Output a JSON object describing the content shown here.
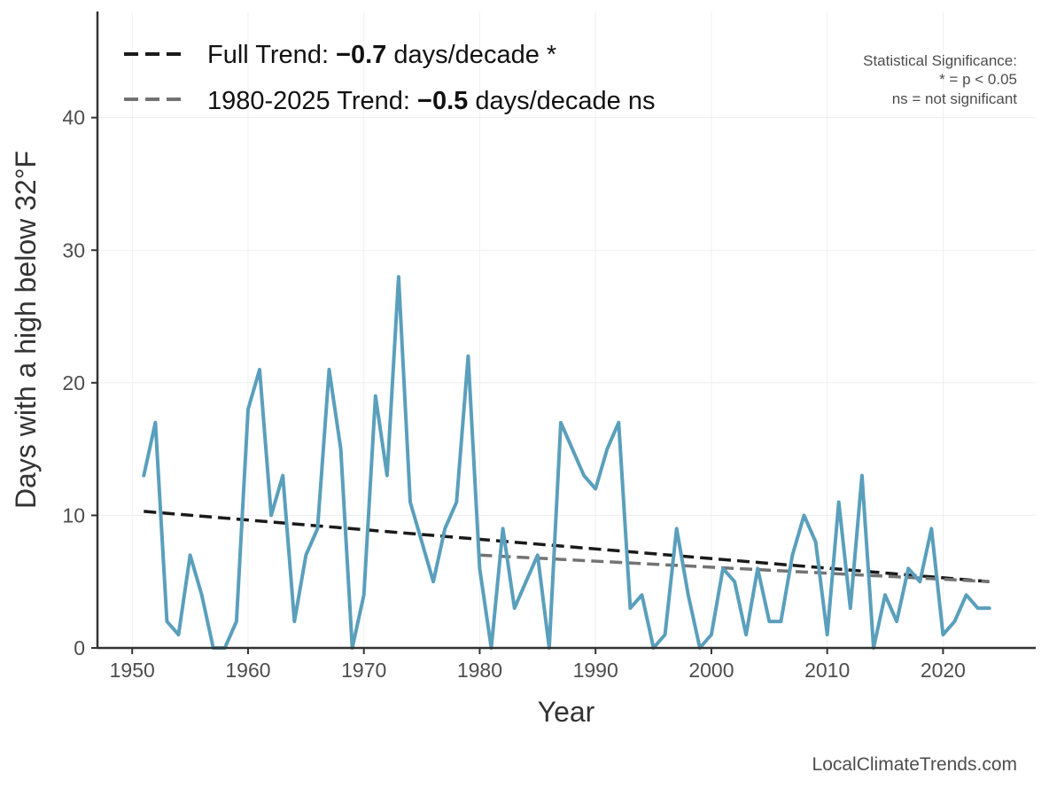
{
  "chart_data": {
    "type": "line",
    "title": "",
    "xlabel": "Year",
    "ylabel": "Days with a high below 32°F",
    "xlim": [
      1947,
      2028
    ],
    "ylim": [
      0,
      48
    ],
    "x_ticks": [
      1950,
      1960,
      1970,
      1980,
      1990,
      2000,
      2010,
      2020
    ],
    "y_ticks": [
      0,
      10,
      20,
      30,
      40
    ],
    "grid": true,
    "legend_position": "top-left",
    "colors": {
      "series": "#5a9fbc",
      "full_trend": "#1a1a1a",
      "recent_trend": "#737373"
    },
    "series": [
      {
        "x": [
          1951,
          1952,
          1953,
          1954,
          1955,
          1956,
          1957,
          1958,
          1959,
          1960,
          1961,
          1962,
          1963,
          1964,
          1965,
          1966,
          1967,
          1968,
          1969,
          1970,
          1971,
          1972,
          1973,
          1974,
          1975,
          1976,
          1977,
          1978,
          1979,
          1980,
          1981,
          1982,
          1983,
          1984,
          1985,
          1986,
          1987,
          1988,
          1989,
          1990,
          1991,
          1992,
          1993,
          1994,
          1995,
          1996,
          1997,
          1998,
          1999,
          2000,
          2001,
          2002,
          2003,
          2004,
          2005,
          2006,
          2007,
          2008,
          2009,
          2010,
          2011,
          2012,
          2013,
          2014,
          2015,
          2016,
          2017,
          2018,
          2019,
          2020,
          2021,
          2022,
          2023,
          2024
        ],
        "values": [
          13,
          17,
          2,
          1,
          7,
          4,
          0,
          0,
          2,
          18,
          21,
          10,
          13,
          2,
          7,
          9,
          21,
          15,
          0,
          4,
          19,
          13,
          28,
          11,
          8,
          5,
          9,
          11,
          22,
          6,
          0,
          9,
          3,
          5,
          7,
          0,
          17,
          15,
          13,
          12,
          15,
          17,
          3,
          4,
          0,
          1,
          9,
          4,
          0,
          1,
          6,
          5,
          1,
          6,
          2,
          2,
          7,
          10,
          8,
          1,
          11,
          3,
          13,
          0,
          4,
          2,
          6,
          5,
          9,
          1,
          2,
          4,
          3,
          3
        ]
      }
    ],
    "trends": [
      {
        "legend_prefix": "Full Trend: ",
        "legend_value": "−0.7",
        "legend_suffix": " days/decade *",
        "x": [
          1951,
          2024
        ],
        "y": [
          10.3,
          5.0
        ]
      },
      {
        "legend_prefix": "1980-2025 Trend: ",
        "legend_value": "−0.5",
        "legend_suffix": " days/decade ns",
        "x": [
          1980,
          2024
        ],
        "y": [
          7.0,
          5.0
        ]
      }
    ],
    "annotations": {
      "significance_title": "Statistical Significance:",
      "significance_line1": "* = p < 0.05",
      "significance_line2": "ns = not significant",
      "credit": "LocalClimateTrends.com"
    }
  }
}
